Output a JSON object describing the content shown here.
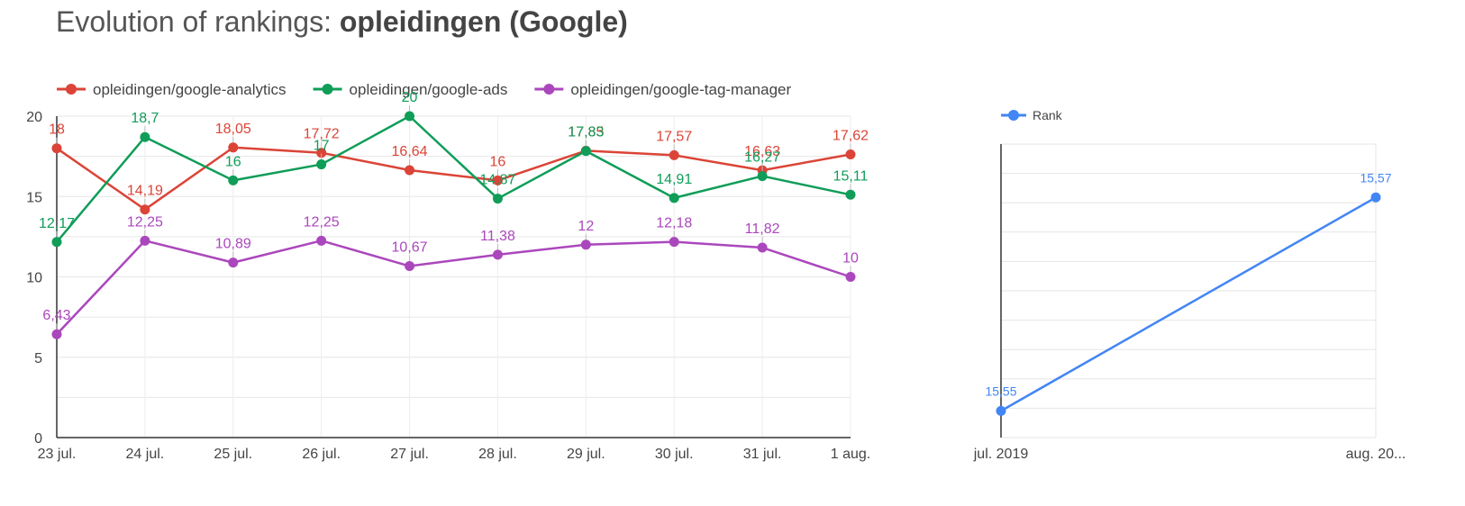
{
  "header": {
    "title_prefix": "Evolution of rankings: ",
    "title_keyword": "opleidingen (Google)"
  },
  "chart_data": [
    {
      "type": "line",
      "title": "",
      "x": [
        "23 jul.",
        "24 jul.",
        "25 jul.",
        "26 jul.",
        "27 jul.",
        "28 jul.",
        "29 jul.",
        "30 jul.",
        "31 jul.",
        "1 aug."
      ],
      "ylim": [
        0,
        20
      ],
      "yticks": [
        0,
        5,
        10,
        15,
        20
      ],
      "grid": true,
      "legend_position": "top-left",
      "series": [
        {
          "name": "opleidingen/google-analytics",
          "color": "#db4437",
          "values": [
            18,
            14.19,
            18.05,
            17.72,
            16.64,
            16,
            17.85,
            17.57,
            16.63,
            17.62
          ],
          "labels": [
            "18",
            "14,19",
            "18,05",
            "17,72",
            "16,64",
            "16",
            "17,85",
            "17,57",
            "16,63",
            "17,62"
          ]
        },
        {
          "name": "opleidingen/google-ads",
          "color": "#0f9d58",
          "values": [
            12.17,
            18.7,
            16,
            17,
            20,
            14.87,
            17.83,
            14.91,
            16.27,
            15.11
          ],
          "labels": [
            "12,17",
            "18,7",
            "16",
            "17",
            "20",
            "14,87",
            "17,83",
            "14,91",
            "16,27",
            "15,11"
          ]
        },
        {
          "name": "opleidingen/google-tag-manager",
          "color": "#ab47bc",
          "values": [
            6.43,
            12.25,
            10.89,
            12.25,
            10.67,
            11.38,
            12,
            12.18,
            11.82,
            10
          ],
          "labels": [
            "6,43",
            "12,25",
            "10,89",
            "12,25",
            "10,67",
            "11,38",
            "12",
            "12,18",
            "11,82",
            "10"
          ]
        }
      ]
    },
    {
      "type": "line",
      "title": "",
      "x": [
        "jul. 2019",
        "aug. 20..."
      ],
      "grid": true,
      "legend_position": "top-left",
      "series": [
        {
          "name": "Rank",
          "color": "#4285f4",
          "values": [
            15.55,
            15.57
          ],
          "labels": [
            "15,55",
            "15,57"
          ]
        }
      ]
    }
  ]
}
